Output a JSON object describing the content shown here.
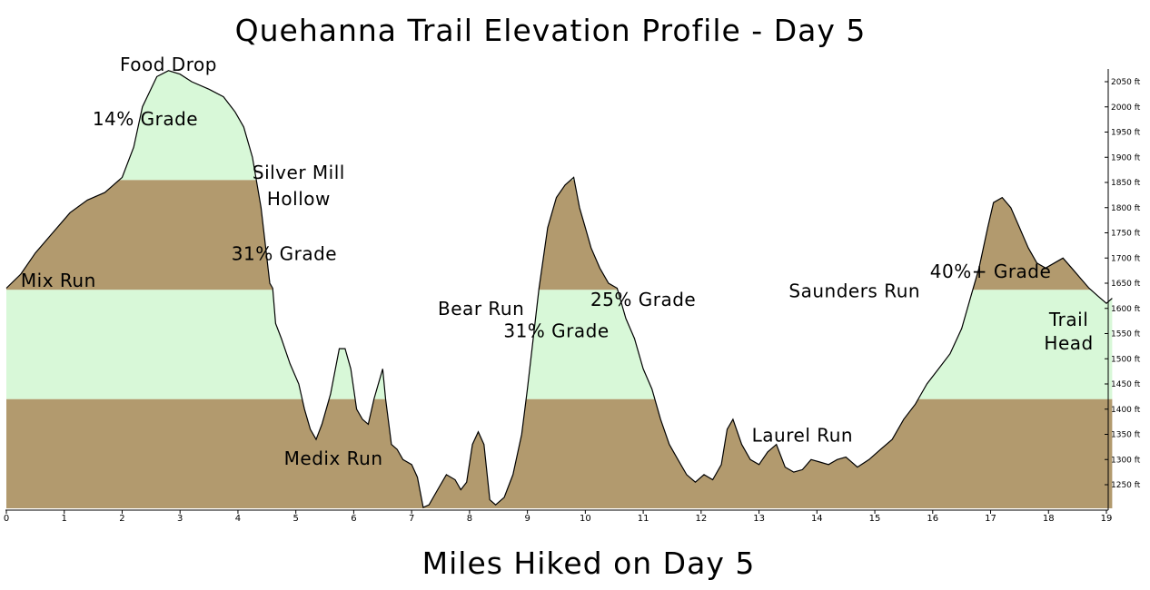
{
  "chart_data": {
    "type": "area",
    "title": "Quehanna Trail Elevation Profile - Day 5",
    "xlabel": "Miles Hiked on Day 5",
    "ylabel": "",
    "xlim": [
      0,
      19
    ],
    "ylim": [
      1200,
      2070
    ],
    "x_ticks": [
      "0",
      "1",
      "2",
      "3",
      "4",
      "5",
      "6",
      "7",
      "8",
      "9",
      "10",
      "11",
      "12",
      "13",
      "14",
      "15",
      "16",
      "17",
      "18",
      "19"
    ],
    "y_ticks": [
      "1250 ft",
      "1300 ft",
      "1350 ft",
      "1400 ft",
      "1450 ft",
      "1500 ft",
      "1550 ft",
      "1600 ft",
      "1650 ft",
      "1700 ft",
      "1750 ft",
      "1800 ft",
      "1850 ft",
      "1900 ft",
      "1950 ft",
      "2000 ft",
      "2050 ft"
    ],
    "y_tick_values": [
      1250,
      1300,
      1350,
      1400,
      1450,
      1500,
      1550,
      1600,
      1650,
      1700,
      1750,
      1800,
      1850,
      1900,
      1950,
      2000,
      2050
    ],
    "band_boundaries": [
      1420,
      1637,
      1855
    ],
    "colors": {
      "earth": "#b29a6e",
      "grade": "#d8f8d8",
      "line": "#000000",
      "background": "#ffffff"
    },
    "series": [
      {
        "x": [
          0,
          0.25,
          0.5,
          0.8,
          1.1,
          1.4,
          1.7,
          1.85,
          2,
          2.2,
          2.35,
          2.6,
          2.8,
          3.0,
          3.2,
          3.5,
          3.75,
          3.95,
          4.1,
          4.25,
          4.4,
          4.5,
          4.55,
          4.6,
          4.65,
          4.75,
          4.9,
          5.05,
          5.15,
          5.25,
          5.35,
          5.45,
          5.6,
          5.75,
          5.85,
          5.95,
          6.05,
          6.15,
          6.25,
          6.35,
          6.45,
          6.5,
          6.55,
          6.65,
          6.75,
          6.85,
          7.0,
          7.1,
          7.2,
          7.3,
          7.45,
          7.6,
          7.75,
          7.85,
          7.95,
          8.05,
          8.15,
          8.25,
          8.35,
          8.45,
          8.6,
          8.75,
          8.9,
          9.0,
          9.1,
          9.2,
          9.35,
          9.5,
          9.65,
          9.8,
          9.9,
          10.0,
          10.1,
          10.25,
          10.4,
          10.55,
          10.7,
          10.85,
          11.0,
          11.15,
          11.3,
          11.45,
          11.6,
          11.75,
          11.9,
          12.05,
          12.2,
          12.35,
          12.45,
          12.55,
          12.7,
          12.85,
          13.0,
          13.15,
          13.3,
          13.45,
          13.6,
          13.75,
          13.9,
          14.05,
          14.2,
          14.35,
          14.5,
          14.7,
          14.9,
          15.1,
          15.3,
          15.5,
          15.7,
          15.9,
          16.1,
          16.3,
          16.5,
          16.65,
          16.8,
          16.95,
          17.05,
          17.2,
          17.35,
          17.5,
          17.65,
          17.8,
          17.95,
          18.1,
          18.25,
          18.4,
          18.55,
          18.7,
          18.85,
          19.0,
          19.1
        ],
        "elevations": [
          1640,
          1668,
          1710,
          1750,
          1790,
          1815,
          1830,
          1845,
          1860,
          1920,
          2000,
          2060,
          2072,
          2065,
          2050,
          2035,
          2020,
          1990,
          1960,
          1900,
          1800,
          1700,
          1650,
          1640,
          1570,
          1540,
          1490,
          1450,
          1400,
          1360,
          1340,
          1370,
          1430,
          1520,
          1520,
          1480,
          1400,
          1380,
          1370,
          1420,
          1460,
          1480,
          1420,
          1330,
          1320,
          1300,
          1290,
          1265,
          1205,
          1210,
          1240,
          1270,
          1260,
          1240,
          1255,
          1330,
          1355,
          1330,
          1220,
          1210,
          1225,
          1270,
          1350,
          1440,
          1540,
          1640,
          1760,
          1820,
          1845,
          1860,
          1800,
          1760,
          1720,
          1680,
          1650,
          1640,
          1580,
          1540,
          1480,
          1440,
          1380,
          1330,
          1300,
          1270,
          1255,
          1270,
          1260,
          1290,
          1360,
          1380,
          1330,
          1300,
          1290,
          1315,
          1330,
          1285,
          1275,
          1280,
          1300,
          1295,
          1290,
          1300,
          1305,
          1285,
          1300,
          1320,
          1340,
          1380,
          1410,
          1450,
          1480,
          1510,
          1560,
          1620,
          1680,
          1760,
          1810,
          1820,
          1800,
          1760,
          1720,
          1690,
          1680,
          1690,
          1700,
          1680,
          1660,
          1640,
          1625,
          1610,
          1620,
          1600
        ]
      }
    ],
    "annotations": [
      {
        "text": "Food Drop",
        "x": 2.8,
        "y": 2084
      },
      {
        "text": "14% Grade",
        "x": 2.4,
        "y": 1976
      },
      {
        "text": "Silver Mill",
        "x": 5.05,
        "y": 1870
      },
      {
        "text": "Hollow",
        "x": 5.05,
        "y": 1818
      },
      {
        "text": "31% Grade",
        "x": 4.8,
        "y": 1709
      },
      {
        "text": "Mix Run",
        "x": 0.9,
        "y": 1655
      },
      {
        "text": "Bear Run",
        "x": 8.2,
        "y": 1600
      },
      {
        "text": "31% Grade",
        "x": 9.5,
        "y": 1555
      },
      {
        "text": "25% Grade",
        "x": 11.0,
        "y": 1618
      },
      {
        "text": "Saunders Run",
        "x": 14.65,
        "y": 1635
      },
      {
        "text": "40%+ Grade",
        "x": 17.0,
        "y": 1673
      },
      {
        "text": "Trail",
        "x": 18.35,
        "y": 1578
      },
      {
        "text": "Head",
        "x": 18.35,
        "y": 1531
      },
      {
        "text": "Laurel Run",
        "x": 13.75,
        "y": 1348
      },
      {
        "text": "Medix Run",
        "x": 5.65,
        "y": 1302
      }
    ]
  }
}
